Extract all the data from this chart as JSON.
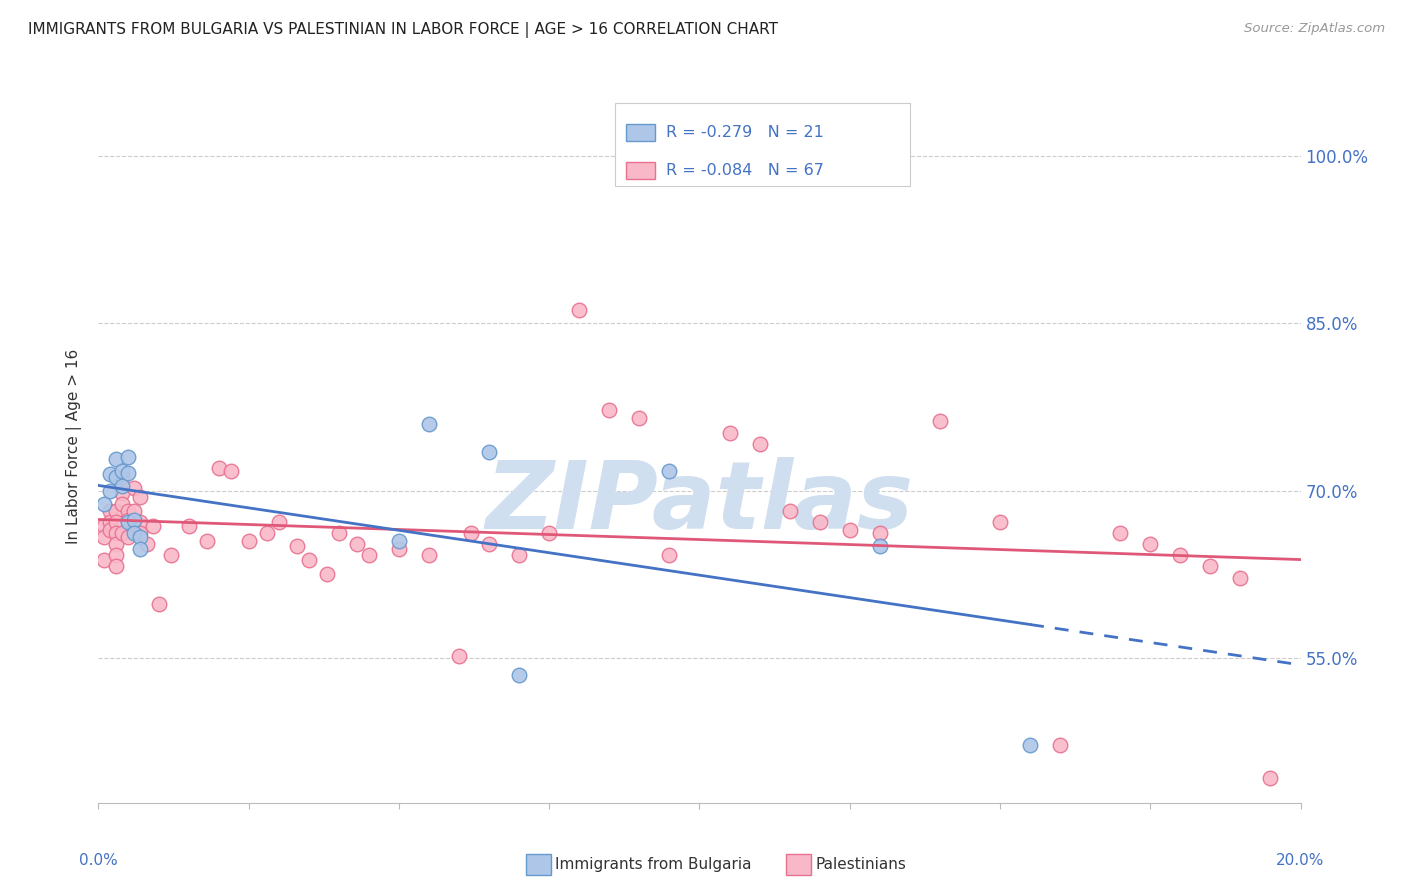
{
  "title": "IMMIGRANTS FROM BULGARIA VS PALESTINIAN IN LABOR FORCE | AGE > 16 CORRELATION CHART",
  "source": "Source: ZipAtlas.com",
  "ylabel": "In Labor Force | Age > 16",
  "xlim": [
    0.0,
    0.2
  ],
  "ylim": [
    0.42,
    1.06
  ],
  "yticks": [
    0.55,
    0.7,
    0.85,
    1.0
  ],
  "ytick_labels": [
    "55.0%",
    "70.0%",
    "85.0%",
    "100.0%"
  ],
  "bg_color": "#ffffff",
  "grid_color": "#cccccc",
  "bulgaria_color": "#aec6e8",
  "palestinian_color": "#f9b8c8",
  "bulgaria_edge_color": "#6699cc",
  "palestinian_edge_color": "#e87090",
  "bulgaria_line_color": "#4472c4",
  "palestinian_line_color": "#e05878",
  "legend_R_bulgaria": "-0.279",
  "legend_N_bulgaria": "21",
  "legend_R_palestinian": "-0.084",
  "legend_N_palestinian": "67",
  "watermark": "ZIPatlas",
  "watermark_color": "#d0dff0",
  "bulgaria_x": [
    0.001,
    0.002,
    0.002,
    0.003,
    0.003,
    0.004,
    0.004,
    0.005,
    0.005,
    0.005,
    0.006,
    0.006,
    0.007,
    0.007,
    0.05,
    0.055,
    0.065,
    0.07,
    0.095,
    0.13,
    0.155
  ],
  "bulgaria_y": [
    0.688,
    0.715,
    0.7,
    0.728,
    0.712,
    0.718,
    0.704,
    0.73,
    0.716,
    0.672,
    0.674,
    0.662,
    0.658,
    0.648,
    0.655,
    0.76,
    0.735,
    0.535,
    0.718,
    0.65,
    0.472
  ],
  "palestinian_x": [
    0.001,
    0.001,
    0.001,
    0.002,
    0.002,
    0.002,
    0.003,
    0.003,
    0.003,
    0.003,
    0.003,
    0.003,
    0.004,
    0.004,
    0.004,
    0.004,
    0.005,
    0.005,
    0.005,
    0.006,
    0.006,
    0.007,
    0.007,
    0.007,
    0.008,
    0.009,
    0.01,
    0.012,
    0.015,
    0.018,
    0.02,
    0.022,
    0.025,
    0.028,
    0.03,
    0.033,
    0.035,
    0.038,
    0.04,
    0.043,
    0.045,
    0.05,
    0.055,
    0.06,
    0.062,
    0.065,
    0.07,
    0.075,
    0.08,
    0.085,
    0.09,
    0.095,
    0.105,
    0.11,
    0.115,
    0.12,
    0.125,
    0.13,
    0.14,
    0.15,
    0.16,
    0.17,
    0.175,
    0.18,
    0.185,
    0.19,
    0.195
  ],
  "palestinian_y": [
    0.668,
    0.658,
    0.638,
    0.682,
    0.672,
    0.665,
    0.682,
    0.672,
    0.662,
    0.652,
    0.642,
    0.632,
    0.712,
    0.698,
    0.688,
    0.662,
    0.682,
    0.674,
    0.658,
    0.702,
    0.682,
    0.694,
    0.672,
    0.662,
    0.652,
    0.668,
    0.598,
    0.642,
    0.668,
    0.655,
    0.72,
    0.718,
    0.655,
    0.662,
    0.672,
    0.65,
    0.638,
    0.625,
    0.662,
    0.652,
    0.642,
    0.648,
    0.642,
    0.552,
    0.662,
    0.652,
    0.642,
    0.662,
    0.862,
    0.772,
    0.765,
    0.642,
    0.752,
    0.742,
    0.682,
    0.672,
    0.665,
    0.662,
    0.762,
    0.672,
    0.472,
    0.662,
    0.652,
    0.642,
    0.632,
    0.622,
    0.442
  ]
}
